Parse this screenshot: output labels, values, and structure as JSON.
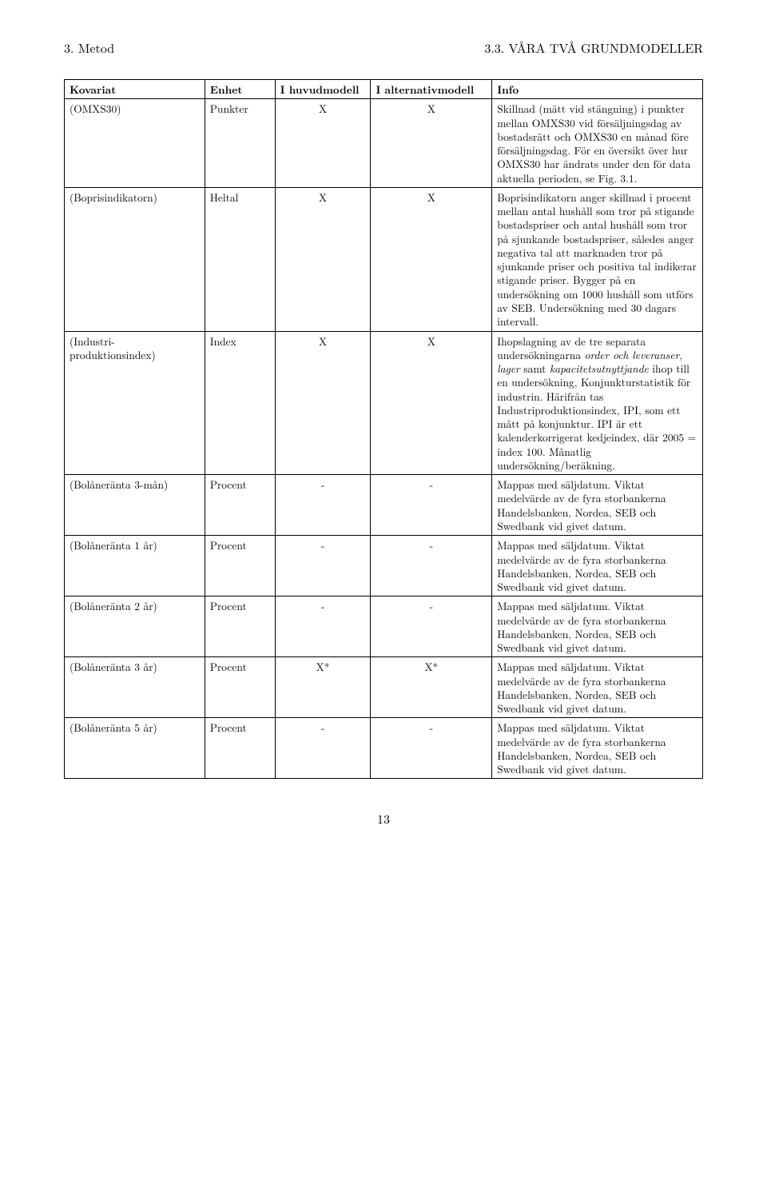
{
  "header": {
    "left": "3. Metod",
    "right": "3.3. VÅRA TVÅ GRUNDMODELLER"
  },
  "table": {
    "columns": {
      "kovariat": "Kovariat",
      "enhet": "Enhet",
      "huvud": "I huvudmodell",
      "alt": "I alternativmodell",
      "info": "Info"
    },
    "rows": [
      {
        "kovariat": "(OMXS30)",
        "enhet": "Punkter",
        "huvud": "X",
        "alt": "X",
        "info": "Skillnad (mätt vid stängning) i punkter mellan OMXS30 vid försäljningsdag av bostadsrätt och OMXS30 en månad före försäljningsdag. För en översikt över hur OMXS30 har ändrats under den för data aktuella perioden, se Fig. 3.1."
      },
      {
        "kovariat": "(Boprisindikatorn)",
        "enhet": "Heltal",
        "huvud": "X",
        "alt": "X",
        "info": "Boprisindikatorn anger skillnad i procent mellan antal hushåll som tror på stigande bostadspriser och antal hushåll som tror på sjunkande bostadspriser, således anger negativa tal att marknaden tror på sjunkande priser och positiva tal indikerar stigande priser. Bygger på en undersökning om 1000 hushåll som utförs av SEB. Undersökning med 30 dagars intervall."
      },
      {
        "kovariat": "(Industri-produktionsindex)",
        "enhet": "Index",
        "huvud": "X",
        "alt": "X",
        "info_html": "Ihopslagning av de tre separata undersökningarna <em>order och leveranser</em>, <em>lager</em> samt <em>kapacitetsutnyttjande</em> ihop till en undersökning, Konjunkturstatistik för industrin. Härifrån tas Industriproduktionsindex, IPI, som ett mått på konjunktur. IPI är ett kalenderkorrigerat kedjeindex, där 2005 = index 100. Månatlig undersökning/beräkning."
      },
      {
        "kovariat": "(Bolåneränta 3-mån)",
        "enhet": "Procent",
        "huvud": "-",
        "alt": "-",
        "info": "Mappas med säljdatum. Viktat medelvärde av de fyra storbankerna Handelsbanken, Nordea, SEB och Swedbank vid givet datum."
      },
      {
        "kovariat": "(Bolåneränta 1 år)",
        "enhet": "Procent",
        "huvud": "-",
        "alt": "-",
        "info": "Mappas med säljdatum. Viktat medelvärde av de fyra storbankerna Handelsbanken, Nordea, SEB och Swedbank vid givet datum."
      },
      {
        "kovariat": "(Bolåneränta 2 år)",
        "enhet": "Procent",
        "huvud": "-",
        "alt": "-",
        "info": "Mappas med säljdatum. Viktat medelvärde av de fyra storbankerna Handelsbanken, Nordea, SEB och Swedbank vid givet datum."
      },
      {
        "kovariat": "(Bolåneränta 3 år)",
        "enhet": "Procent",
        "huvud": "X*",
        "alt": "X*",
        "info": "Mappas med säljdatum. Viktat medelvärde av de fyra storbankerna Handelsbanken, Nordea, SEB och Swedbank vid givet datum."
      },
      {
        "kovariat": "(Bolåneränta 5 år)",
        "enhet": "Procent",
        "huvud": "-",
        "alt": "-",
        "info": "Mappas med säljdatum. Viktat medelvärde av de fyra storbankerna Handelsbanken, Nordea, SEB och Swedbank vid givet datum."
      }
    ]
  },
  "page_number": "13"
}
